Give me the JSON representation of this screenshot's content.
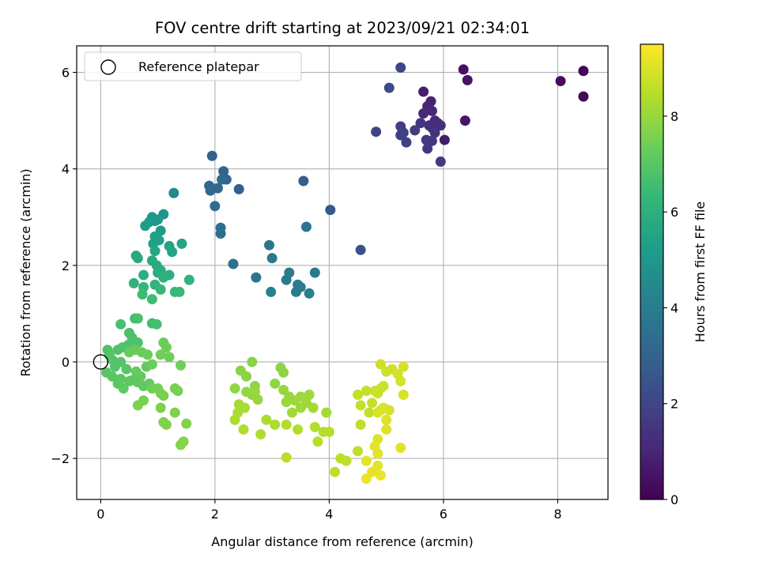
{
  "chart_data": {
    "type": "scatter",
    "title": "FOV centre drift starting at 2023/09/21 02:34:01",
    "xlabel": "Angular distance from reference (arcmin)",
    "ylabel": "Rotation from reference (arcmin)",
    "xlim": [
      -0.42,
      8.88
    ],
    "ylim": [
      -2.85,
      6.55
    ],
    "xticks": [
      0,
      2,
      4,
      6,
      8
    ],
    "yticks": [
      -2,
      0,
      2,
      4,
      6
    ],
    "xtick_labels": [
      "0",
      "2",
      "4",
      "6",
      "8"
    ],
    "ytick_labels": [
      "−2",
      "0",
      "2",
      "4",
      "6"
    ],
    "grid": true,
    "legend": {
      "position": "top-left",
      "entries": [
        {
          "label": "Reference platepar",
          "marker": "open-circle"
        }
      ]
    },
    "reference_point": {
      "x": 0,
      "y": 0
    },
    "colorbar": {
      "label": "Hours from first FF file",
      "min": 0,
      "max": 9.5,
      "ticks": [
        0,
        2,
        4,
        6,
        8
      ],
      "tick_labels": [
        "0",
        "2",
        "4",
        "6",
        "8"
      ],
      "colormap": "viridis"
    },
    "colormap_stops": [
      "#440154",
      "#482878",
      "#3e4989",
      "#31688e",
      "#26828e",
      "#1f9e89",
      "#35b779",
      "#6ece58",
      "#b5de2b",
      "#fde725"
    ],
    "points_columns": [
      "x",
      "y",
      "hours"
    ],
    "points": [
      [
        8.45,
        6.03,
        0.1
      ],
      [
        8.45,
        5.5,
        0.2
      ],
      [
        8.05,
        5.82,
        0.3
      ],
      [
        6.35,
        6.06,
        0.4
      ],
      [
        6.42,
        5.84,
        0.5
      ],
      [
        6.38,
        5.0,
        0.6
      ],
      [
        6.02,
        4.6,
        0.7
      ],
      [
        5.65,
        5.6,
        0.8
      ],
      [
        5.78,
        5.4,
        0.9
      ],
      [
        5.72,
        5.3,
        1.0
      ],
      [
        5.65,
        5.15,
        1.05
      ],
      [
        5.8,
        5.2,
        1.1
      ],
      [
        5.85,
        5.0,
        1.15
      ],
      [
        5.9,
        4.95,
        1.2
      ],
      [
        5.75,
        4.9,
        1.25
      ],
      [
        5.8,
        4.85,
        1.3
      ],
      [
        5.95,
        4.9,
        1.35
      ],
      [
        5.6,
        4.95,
        1.4
      ],
      [
        5.85,
        4.75,
        1.45
      ],
      [
        5.7,
        4.6,
        1.5
      ],
      [
        5.8,
        4.58,
        1.55
      ],
      [
        5.72,
        4.42,
        1.6
      ],
      [
        5.95,
        4.15,
        1.65
      ],
      [
        5.5,
        4.8,
        1.7
      ],
      [
        5.3,
        4.75,
        1.75
      ],
      [
        5.25,
        4.88,
        1.8
      ],
      [
        5.25,
        4.7,
        1.85
      ],
      [
        5.35,
        4.55,
        1.9
      ],
      [
        4.82,
        4.77,
        1.95
      ],
      [
        5.25,
        6.1,
        2.0
      ],
      [
        5.05,
        5.68,
        2.1
      ],
      [
        4.55,
        2.32,
        2.4
      ],
      [
        4.02,
        3.15,
        2.6
      ],
      [
        3.55,
        3.75,
        2.8
      ],
      [
        2.42,
        3.58,
        2.9
      ],
      [
        1.95,
        4.27,
        3.0
      ],
      [
        2.15,
        3.95,
        3.05
      ],
      [
        2.2,
        3.78,
        3.1
      ],
      [
        1.9,
        3.65,
        3.15
      ],
      [
        2.05,
        3.6,
        3.2
      ],
      [
        1.92,
        3.55,
        3.25
      ],
      [
        2.12,
        3.78,
        3.3
      ],
      [
        2.0,
        3.23,
        3.35
      ],
      [
        2.1,
        2.78,
        3.4
      ],
      [
        2.1,
        2.66,
        3.45
      ],
      [
        2.32,
        2.03,
        3.5
      ],
      [
        2.72,
        1.75,
        3.6
      ],
      [
        3.6,
        2.8,
        3.7
      ],
      [
        2.95,
        2.42,
        3.75
      ],
      [
        3.0,
        2.15,
        3.8
      ],
      [
        3.3,
        1.85,
        3.85
      ],
      [
        3.75,
        1.85,
        3.9
      ],
      [
        3.25,
        1.7,
        3.95
      ],
      [
        3.45,
        1.6,
        4.0
      ],
      [
        3.5,
        1.55,
        4.05
      ],
      [
        3.42,
        1.45,
        4.1
      ],
      [
        3.65,
        1.42,
        4.15
      ],
      [
        2.98,
        1.45,
        4.2
      ],
      [
        1.28,
        3.5,
        4.5
      ],
      [
        1.1,
        3.06,
        4.9
      ],
      [
        0.9,
        3.0,
        5.0
      ],
      [
        1.0,
        2.95,
        5.05
      ],
      [
        0.95,
        2.92,
        5.1
      ],
      [
        0.85,
        2.9,
        5.15
      ],
      [
        0.78,
        2.82,
        5.2
      ],
      [
        1.05,
        2.72,
        5.25
      ],
      [
        0.95,
        2.6,
        5.3
      ],
      [
        1.02,
        2.52,
        5.35
      ],
      [
        0.92,
        2.45,
        5.4
      ],
      [
        1.2,
        2.4,
        5.45
      ],
      [
        1.42,
        2.45,
        5.5
      ],
      [
        1.25,
        2.28,
        5.55
      ],
      [
        0.95,
        2.3,
        5.6
      ],
      [
        0.62,
        2.2,
        5.65
      ],
      [
        0.65,
        2.15,
        5.7
      ],
      [
        0.9,
        2.1,
        5.75
      ],
      [
        0.98,
        2.0,
        5.8
      ],
      [
        1.05,
        1.9,
        5.85
      ],
      [
        1.0,
        1.85,
        5.9
      ],
      [
        0.75,
        1.8,
        5.95
      ],
      [
        1.2,
        1.8,
        6.0
      ],
      [
        1.1,
        1.75,
        6.05
      ],
      [
        1.55,
        1.7,
        6.1
      ],
      [
        0.58,
        1.63,
        6.15
      ],
      [
        0.95,
        1.6,
        6.2
      ],
      [
        0.75,
        1.55,
        6.25
      ],
      [
        1.05,
        1.5,
        6.3
      ],
      [
        1.3,
        1.45,
        6.35
      ],
      [
        1.38,
        1.45,
        6.4
      ],
      [
        0.73,
        1.4,
        6.45
      ],
      [
        0.9,
        1.3,
        6.5
      ],
      [
        0.6,
        0.9,
        6.55
      ],
      [
        0.9,
        0.8,
        6.6
      ],
      [
        0.98,
        0.78,
        6.65
      ],
      [
        0.35,
        0.78,
        6.7
      ],
      [
        0.65,
        0.9,
        6.72
      ],
      [
        0.5,
        0.6,
        6.74
      ],
      [
        0.55,
        0.5,
        6.76
      ],
      [
        0.65,
        0.4,
        6.78
      ],
      [
        0.48,
        0.35,
        6.8
      ],
      [
        0.38,
        0.3,
        6.82
      ],
      [
        0.3,
        0.25,
        6.84
      ],
      [
        0.12,
        0.25,
        6.86
      ],
      [
        0.15,
        0.15,
        6.88
      ],
      [
        0.2,
        0.05,
        6.9
      ],
      [
        0.35,
        0.0,
        6.92
      ],
      [
        0.25,
        -0.1,
        6.94
      ],
      [
        0.45,
        -0.15,
        6.96
      ],
      [
        0.1,
        -0.22,
        6.98
      ],
      [
        0.2,
        -0.3,
        7.0
      ],
      [
        0.35,
        -0.35,
        7.02
      ],
      [
        0.5,
        -0.4,
        7.04
      ],
      [
        0.3,
        -0.45,
        7.06
      ],
      [
        0.55,
        -0.38,
        7.08
      ],
      [
        0.4,
        -0.55,
        7.1
      ],
      [
        0.65,
        -0.42,
        7.12
      ],
      [
        0.75,
        -0.5,
        7.14
      ],
      [
        0.85,
        -0.45,
        7.16
      ],
      [
        0.7,
        -0.3,
        7.18
      ],
      [
        0.62,
        -0.2,
        7.2
      ],
      [
        0.8,
        -0.1,
        7.22
      ],
      [
        0.5,
        0.2,
        7.24
      ],
      [
        0.6,
        0.25,
        7.26
      ],
      [
        0.72,
        0.2,
        7.28
      ],
      [
        0.82,
        0.15,
        7.3
      ],
      [
        0.9,
        -0.05,
        7.32
      ],
      [
        1.1,
        0.4,
        7.34
      ],
      [
        1.15,
        0.3,
        7.36
      ],
      [
        1.2,
        0.1,
        7.38
      ],
      [
        1.05,
        0.15,
        7.4
      ],
      [
        1.4,
        -0.07,
        7.42
      ],
      [
        0.9,
        -0.55,
        7.44
      ],
      [
        1.0,
        -0.55,
        7.46
      ],
      [
        1.3,
        -0.55,
        7.48
      ],
      [
        1.35,
        -0.6,
        7.5
      ],
      [
        1.1,
        -0.7,
        7.52
      ],
      [
        1.05,
        -0.65,
        7.54
      ],
      [
        0.75,
        -0.8,
        7.56
      ],
      [
        0.65,
        -0.9,
        7.58
      ],
      [
        1.05,
        -0.95,
        7.6
      ],
      [
        1.3,
        -1.05,
        7.62
      ],
      [
        1.1,
        -1.25,
        7.64
      ],
      [
        1.15,
        -1.3,
        7.66
      ],
      [
        1.5,
        -1.28,
        7.68
      ],
      [
        1.45,
        -1.65,
        7.7
      ],
      [
        1.4,
        -1.72,
        7.72
      ],
      [
        2.65,
        0.0,
        7.75
      ],
      [
        2.45,
        -0.18,
        7.78
      ],
      [
        2.55,
        -0.3,
        7.8
      ],
      [
        3.15,
        -0.12,
        7.82
      ],
      [
        3.2,
        -0.22,
        7.84
      ],
      [
        3.05,
        -0.45,
        7.86
      ],
      [
        2.7,
        -0.5,
        7.88
      ],
      [
        2.35,
        -0.55,
        7.9
      ],
      [
        2.55,
        -0.62,
        7.92
      ],
      [
        2.65,
        -0.68,
        7.94
      ],
      [
        2.7,
        -0.62,
        7.96
      ],
      [
        2.75,
        -0.78,
        7.98
      ],
      [
        3.2,
        -0.58,
        8.0
      ],
      [
        3.3,
        -0.72,
        8.02
      ],
      [
        3.25,
        -0.83,
        8.04
      ],
      [
        3.4,
        -0.8,
        8.06
      ],
      [
        3.5,
        -0.72,
        8.08
      ],
      [
        3.65,
        -0.68,
        8.1
      ],
      [
        3.6,
        -0.85,
        8.12
      ],
      [
        3.5,
        -0.95,
        8.14
      ],
      [
        3.35,
        -1.05,
        8.16
      ],
      [
        3.72,
        -0.95,
        8.18
      ],
      [
        3.95,
        -1.05,
        8.2
      ],
      [
        2.42,
        -0.88,
        8.22
      ],
      [
        2.52,
        -0.95,
        8.24
      ],
      [
        2.4,
        -1.05,
        8.26
      ],
      [
        2.9,
        -1.2,
        8.28
      ],
      [
        3.05,
        -1.3,
        8.3
      ],
      [
        2.35,
        -1.2,
        8.32
      ],
      [
        2.5,
        -1.4,
        8.34
      ],
      [
        2.8,
        -1.5,
        8.36
      ],
      [
        3.25,
        -1.3,
        8.38
      ],
      [
        3.45,
        -1.4,
        8.4
      ],
      [
        3.75,
        -1.35,
        8.42
      ],
      [
        3.9,
        -1.45,
        8.44
      ],
      [
        4.0,
        -1.45,
        8.46
      ],
      [
        3.8,
        -1.65,
        8.48
      ],
      [
        3.25,
        -1.98,
        8.5
      ],
      [
        4.1,
        -2.28,
        8.52
      ],
      [
        4.2,
        -2.0,
        8.54
      ],
      [
        4.3,
        -2.05,
        8.56
      ],
      [
        4.5,
        -1.85,
        8.58
      ],
      [
        4.55,
        -1.3,
        8.6
      ],
      [
        4.7,
        -1.05,
        8.62
      ],
      [
        4.5,
        -0.68,
        8.64
      ],
      [
        4.55,
        -0.9,
        8.66
      ],
      [
        4.65,
        -0.6,
        8.68
      ],
      [
        4.75,
        -0.85,
        8.7
      ],
      [
        4.8,
        -0.6,
        8.72
      ],
      [
        4.85,
        -0.65,
        8.74
      ],
      [
        4.9,
        -0.55,
        8.76
      ],
      [
        4.95,
        -0.5,
        8.78
      ],
      [
        4.9,
        -0.05,
        8.8
      ],
      [
        5.0,
        -0.2,
        8.82
      ],
      [
        5.1,
        -0.15,
        8.84
      ],
      [
        5.2,
        -0.25,
        8.86
      ],
      [
        5.3,
        -0.1,
        8.88
      ],
      [
        5.25,
        -0.4,
        8.9
      ],
      [
        5.3,
        -0.68,
        8.92
      ],
      [
        4.95,
        -0.95,
        8.94
      ],
      [
        5.05,
        -1.0,
        8.96
      ],
      [
        4.85,
        -1.05,
        8.98
      ],
      [
        4.9,
        -1.0,
        9.0
      ],
      [
        5.0,
        -1.2,
        9.02
      ],
      [
        5.0,
        -1.4,
        9.04
      ],
      [
        4.85,
        -1.6,
        9.06
      ],
      [
        5.25,
        -1.78,
        9.08
      ],
      [
        4.8,
        -1.75,
        9.1
      ],
      [
        4.85,
        -1.9,
        9.12
      ],
      [
        4.65,
        -2.05,
        9.14
      ],
      [
        4.85,
        -2.15,
        9.16
      ],
      [
        4.75,
        -2.28,
        9.18
      ],
      [
        4.9,
        -2.35,
        9.2
      ],
      [
        4.65,
        -2.42,
        9.22
      ]
    ]
  }
}
